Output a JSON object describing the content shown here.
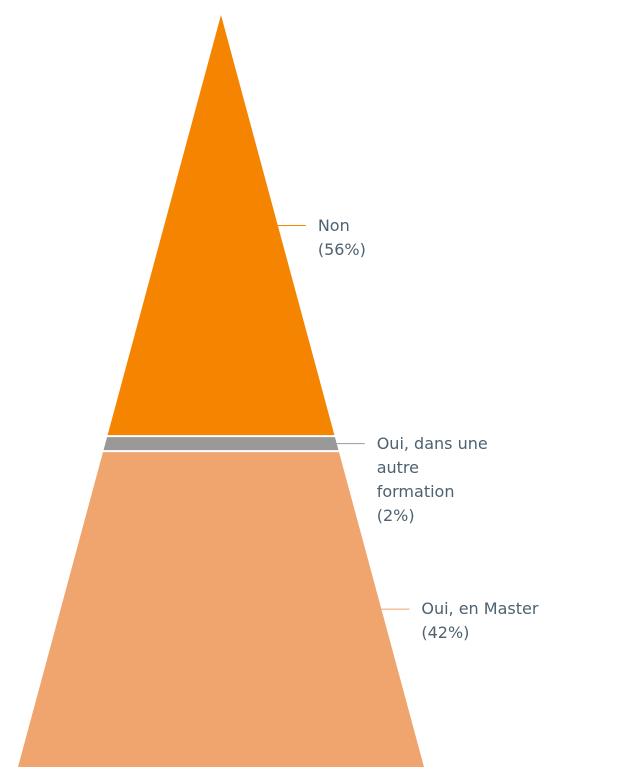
{
  "chart_data": {
    "type": "pyramid",
    "categories": [
      "Non",
      "Oui, dans une autre formation",
      "Oui, en Master"
    ],
    "values": [
      56,
      2,
      42
    ],
    "value_labels": [
      "(56%)",
      "(2%)",
      "(42%)"
    ],
    "colors": [
      "#f58400",
      "#999999",
      "#f0a46e"
    ]
  }
}
